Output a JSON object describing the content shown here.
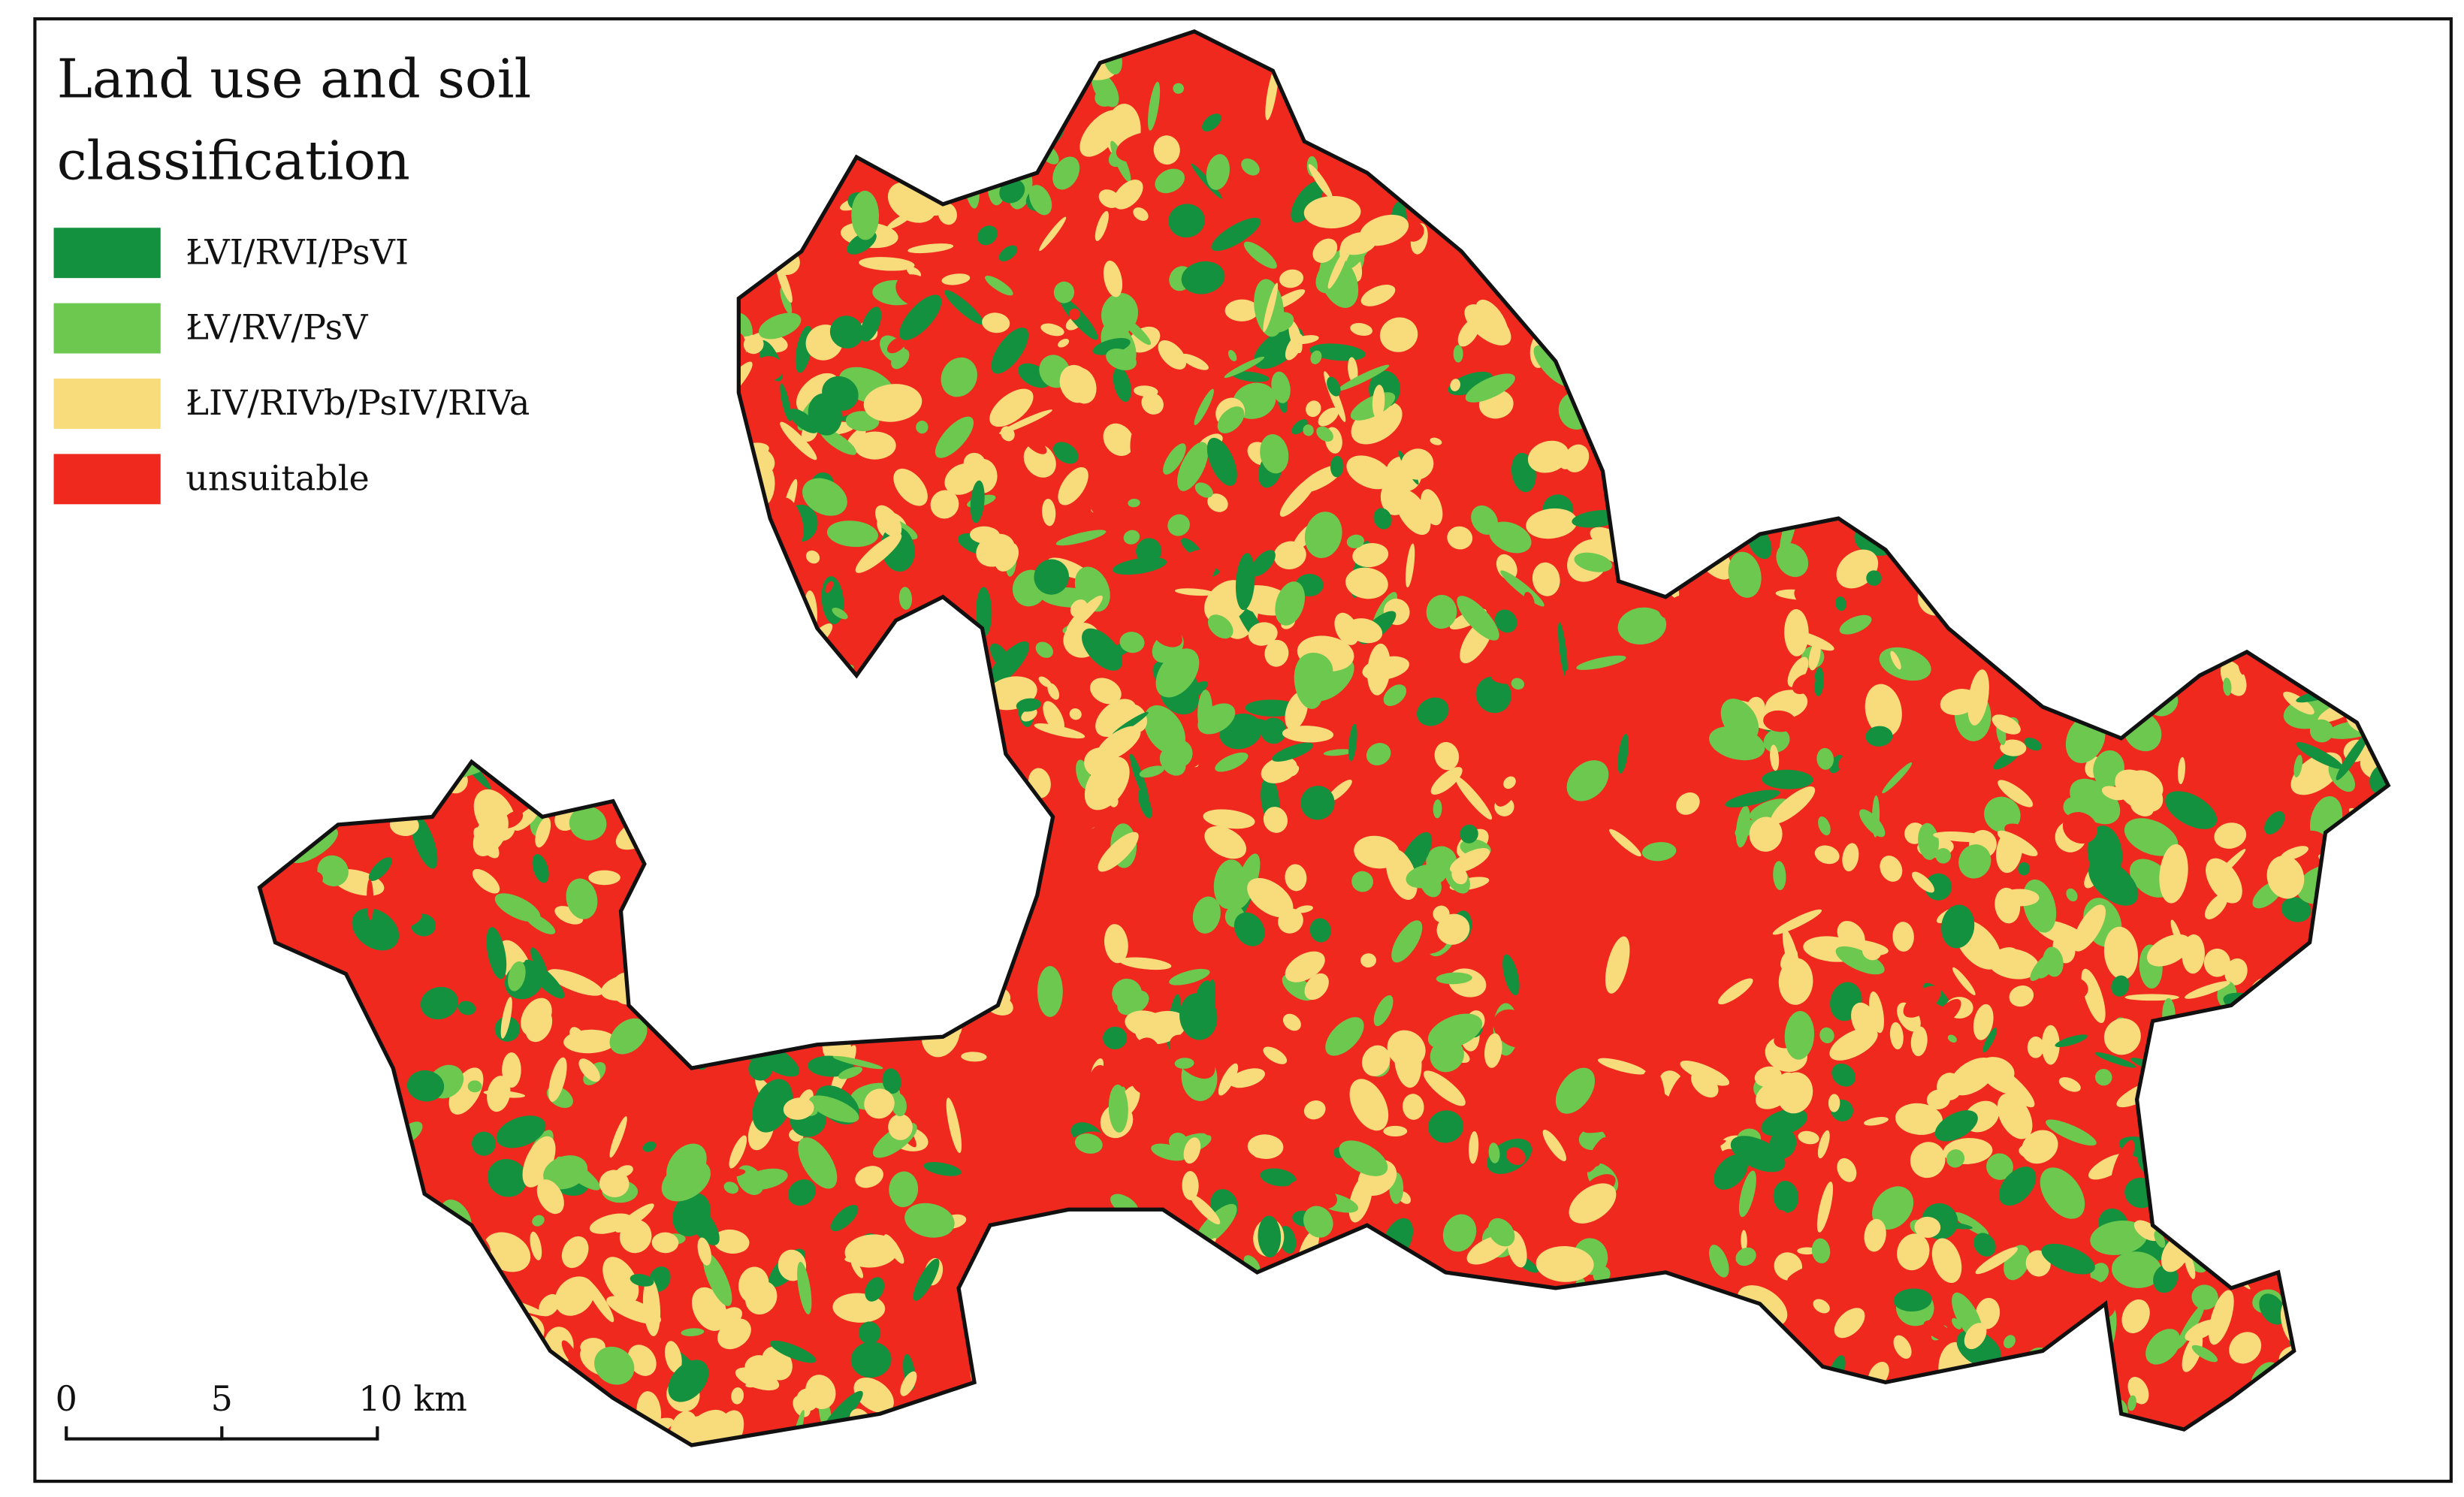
{
  "title_lines": [
    "Land use and soil",
    "classification"
  ],
  "legend": [
    {
      "label": "ŁVI/RVI/PsVI",
      "color": "#13913f"
    },
    {
      "label": "ŁV/RV/PsV",
      "color": "#6cc84e"
    },
    {
      "label": "ŁIV/RIVb/PsIV/RIVa",
      "color": "#f8dc7c"
    },
    {
      "label": "unsuitable",
      "color": "#f0291f"
    }
  ],
  "scale_bar": {
    "labels": [
      "0",
      "5",
      "10 km"
    ]
  }
}
